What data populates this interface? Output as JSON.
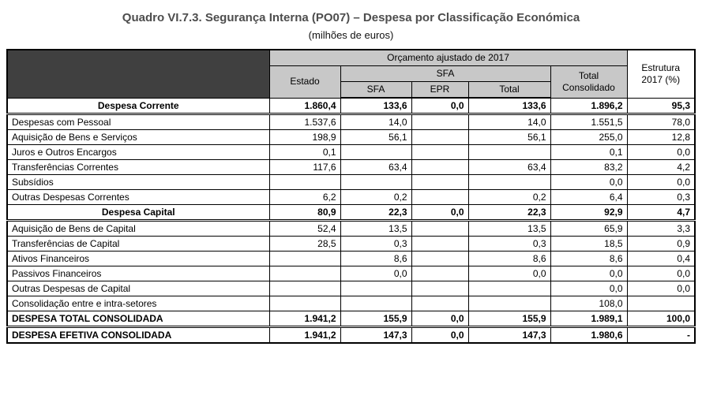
{
  "title": "Quadro VI.7.3. Segurança Interna (PO07) – Despesa por Classificação Económica",
  "subtitle": "(milhões de euros)",
  "colors": {
    "header_dark": "#404040",
    "header_gray": "#c8c8c8",
    "title_gray": "#4d4d4d"
  },
  "table": {
    "header": {
      "orcamento": "Orçamento ajustado de 2017",
      "estado": "Estado",
      "sfa_group": "SFA",
      "sfa": "SFA",
      "epr": "EPR",
      "total": "Total",
      "total_consolidado": "Total Consolidado",
      "estrutura": "Estrutura 2017 (%)"
    },
    "rows": [
      {
        "kind": "section",
        "label": "Despesa Corrente",
        "values": [
          "1.860,4",
          "133,6",
          "0,0",
          "133,6",
          "1.896,2",
          "95,3"
        ]
      },
      {
        "kind": "item",
        "label": "Despesas com Pessoal",
        "values": [
          "1.537,6",
          "14,0",
          "",
          "14,0",
          "1.551,5",
          "78,0"
        ]
      },
      {
        "kind": "item",
        "label": "Aquisição de Bens e Serviços",
        "values": [
          "198,9",
          "56,1",
          "",
          "56,1",
          "255,0",
          "12,8"
        ]
      },
      {
        "kind": "item",
        "label": "Juros e Outros Encargos",
        "values": [
          "0,1",
          "",
          "",
          "",
          "0,1",
          "0,0"
        ]
      },
      {
        "kind": "item",
        "label": "Transferências Correntes",
        "values": [
          "117,6",
          "63,4",
          "",
          "63,4",
          "83,2",
          "4,2"
        ]
      },
      {
        "kind": "item",
        "label": "Subsídios",
        "values": [
          "",
          "",
          "",
          "",
          "0,0",
          "0,0"
        ]
      },
      {
        "kind": "item",
        "label": "Outras Despesas Correntes",
        "values": [
          "6,2",
          "0,2",
          "",
          "0,2",
          "6,4",
          "0,3"
        ]
      },
      {
        "kind": "section",
        "label": "Despesa Capital",
        "values": [
          "80,9",
          "22,3",
          "0,0",
          "22,3",
          "92,9",
          "4,7"
        ]
      },
      {
        "kind": "item",
        "label": "Aquisição de Bens de Capital",
        "values": [
          "52,4",
          "13,5",
          "",
          "13,5",
          "65,9",
          "3,3"
        ]
      },
      {
        "kind": "item",
        "label": "Transferências de Capital",
        "values": [
          "28,5",
          "0,3",
          "",
          "0,3",
          "18,5",
          "0,9"
        ]
      },
      {
        "kind": "item",
        "label": "Ativos Financeiros",
        "values": [
          "",
          "8,6",
          "",
          "8,6",
          "8,6",
          "0,4"
        ]
      },
      {
        "kind": "item",
        "label": "Passivos Financeiros",
        "values": [
          "",
          "0,0",
          "",
          "0,0",
          "0,0",
          "0,0"
        ]
      },
      {
        "kind": "item",
        "label": "Outras Despesas de Capital",
        "values": [
          "",
          "",
          "",
          "",
          "0,0",
          "0,0"
        ]
      },
      {
        "kind": "item",
        "label": "Consolidação entre e intra-setores",
        "values": [
          "",
          "",
          "",
          "",
          "108,0",
          ""
        ]
      },
      {
        "kind": "total",
        "label": "DESPESA TOTAL CONSOLIDADA",
        "values": [
          "1.941,2",
          "155,9",
          "0,0",
          "155,9",
          "1.989,1",
          "100,0"
        ]
      },
      {
        "kind": "total",
        "label": "DESPESA EFETIVA CONSOLIDADA",
        "values": [
          "1.941,2",
          "147,3",
          "0,0",
          "147,3",
          "1.980,6",
          "-"
        ]
      }
    ]
  }
}
